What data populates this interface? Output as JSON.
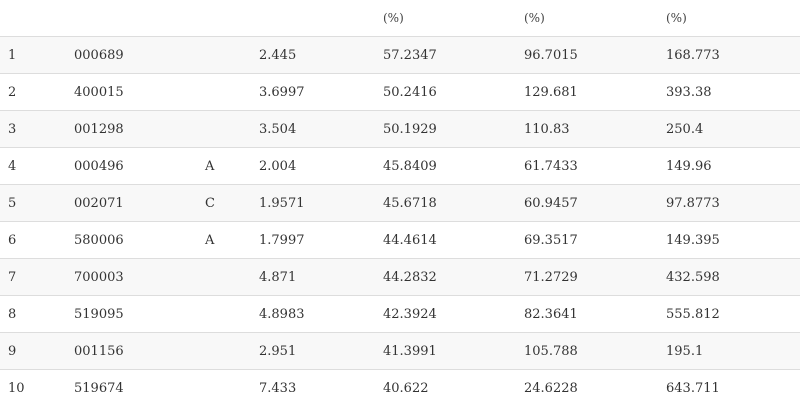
{
  "table": {
    "headers": [
      "",
      "",
      "",
      "",
      "(%)",
      "(%)",
      "(%)"
    ],
    "rows": [
      [
        "1",
        "000689",
        "",
        "2.445",
        "57.2347",
        "96.7015",
        "168.773"
      ],
      [
        "2",
        "400015",
        "",
        "3.6997",
        "50.2416",
        "129.681",
        "393.38"
      ],
      [
        "3",
        "001298",
        "",
        "3.504",
        "50.1929",
        "110.83",
        "250.4"
      ],
      [
        "4",
        "000496",
        "A",
        "2.004",
        "45.8409",
        "61.7433",
        "149.96"
      ],
      [
        "5",
        "002071",
        "C",
        "1.9571",
        "45.6718",
        "60.9457",
        "97.8773"
      ],
      [
        "6",
        "580006",
        "A",
        "1.7997",
        "44.4614",
        "69.3517",
        "149.395"
      ],
      [
        "7",
        "700003",
        "",
        "4.871",
        "44.2832",
        "71.2729",
        "432.598"
      ],
      [
        "8",
        "519095",
        "",
        "4.8983",
        "42.3924",
        "82.3641",
        "555.812"
      ],
      [
        "9",
        "001156",
        "",
        "2.951",
        "41.3991",
        "105.788",
        "195.1"
      ],
      [
        "10",
        "519674",
        "",
        "7.433",
        "40.622",
        "24.6228",
        "643.711"
      ]
    ]
  }
}
